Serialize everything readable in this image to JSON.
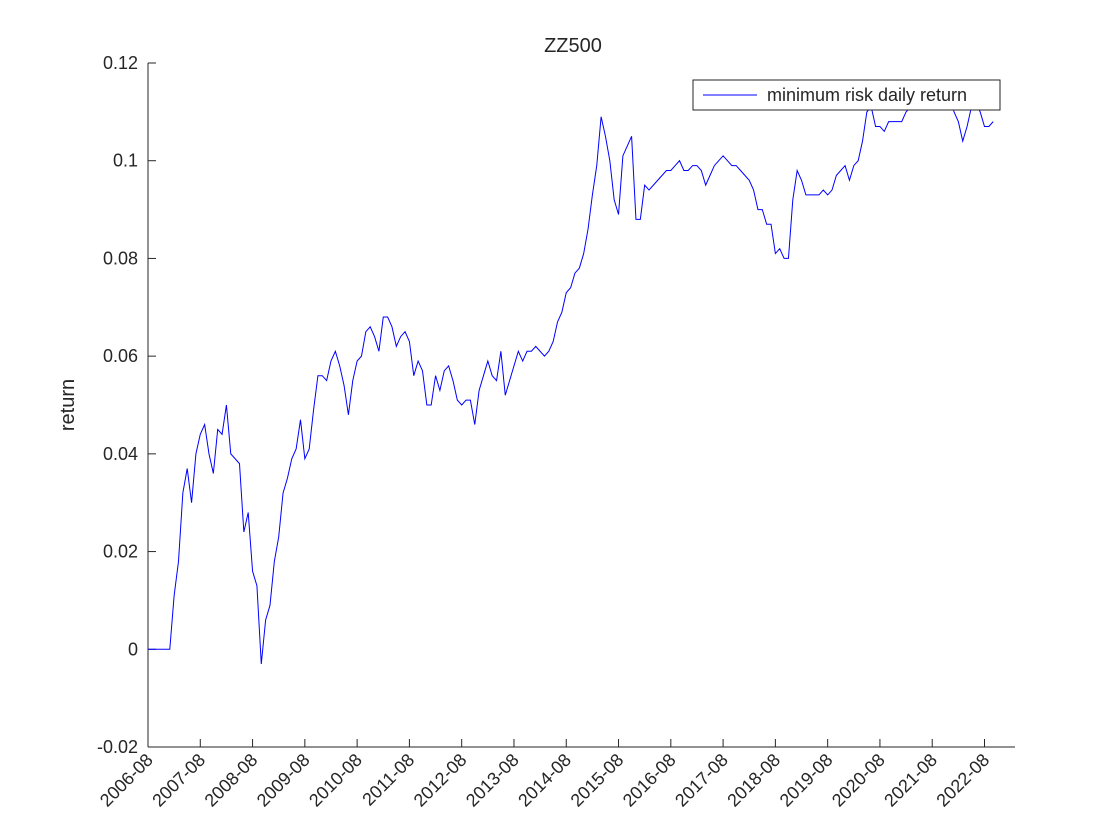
{
  "chart_data": {
    "type": "line",
    "title": "ZZ500",
    "ylabel": "return",
    "x": [
      "2006-08",
      "2006-09",
      "2006-10",
      "2006-11",
      "2006-12",
      "2007-01",
      "2007-02",
      "2007-03",
      "2007-04",
      "2007-05",
      "2007-06",
      "2007-07",
      "2007-08",
      "2007-09",
      "2007-10",
      "2007-11",
      "2007-12",
      "2008-01",
      "2008-02",
      "2008-03",
      "2008-04",
      "2008-05",
      "2008-06",
      "2008-07",
      "2008-08",
      "2008-09",
      "2008-10",
      "2008-11",
      "2008-12",
      "2009-01",
      "2009-02",
      "2009-03",
      "2009-04",
      "2009-05",
      "2009-06",
      "2009-07",
      "2009-08",
      "2009-09",
      "2009-10",
      "2009-11",
      "2009-12",
      "2010-01",
      "2010-02",
      "2010-03",
      "2010-04",
      "2010-05",
      "2010-06",
      "2010-07",
      "2010-08",
      "2010-09",
      "2010-10",
      "2010-11",
      "2010-12",
      "2011-01",
      "2011-02",
      "2011-03",
      "2011-04",
      "2011-05",
      "2011-06",
      "2011-07",
      "2011-08",
      "2011-09",
      "2011-10",
      "2011-11",
      "2011-12",
      "2012-01",
      "2012-02",
      "2012-03",
      "2012-04",
      "2012-05",
      "2012-06",
      "2012-07",
      "2012-08",
      "2012-09",
      "2012-10",
      "2012-11",
      "2012-12",
      "2013-01",
      "2013-02",
      "2013-03",
      "2013-04",
      "2013-05",
      "2013-06",
      "2013-07",
      "2013-08",
      "2013-09",
      "2013-10",
      "2013-11",
      "2013-12",
      "2014-01",
      "2014-02",
      "2014-03",
      "2014-04",
      "2014-05",
      "2014-06",
      "2014-07",
      "2014-08",
      "2014-09",
      "2014-10",
      "2014-11",
      "2014-12",
      "2015-01",
      "2015-02",
      "2015-03",
      "2015-04",
      "2015-05",
      "2015-06",
      "2015-07",
      "2015-08",
      "2015-09",
      "2015-10",
      "2015-11",
      "2015-12",
      "2016-01",
      "2016-02",
      "2016-03",
      "2016-04",
      "2016-05",
      "2016-06",
      "2016-07",
      "2016-08",
      "2016-09",
      "2016-10",
      "2016-11",
      "2016-12",
      "2017-01",
      "2017-02",
      "2017-03",
      "2017-04",
      "2017-05",
      "2017-06",
      "2017-07",
      "2017-08",
      "2017-09",
      "2017-10",
      "2017-11",
      "2017-12",
      "2018-01",
      "2018-02",
      "2018-03",
      "2018-04",
      "2018-05",
      "2018-06",
      "2018-07",
      "2018-08",
      "2018-09",
      "2018-10",
      "2018-11",
      "2018-12",
      "2019-01",
      "2019-02",
      "2019-03",
      "2019-04",
      "2019-05",
      "2019-06",
      "2019-07",
      "2019-08",
      "2019-09",
      "2019-10",
      "2019-11",
      "2019-12",
      "2020-01",
      "2020-02",
      "2020-03",
      "2020-04",
      "2020-05",
      "2020-06",
      "2020-07",
      "2020-08",
      "2020-09",
      "2020-10",
      "2020-11",
      "2020-12",
      "2021-01",
      "2021-02",
      "2021-03",
      "2021-04",
      "2021-05",
      "2021-06",
      "2021-07",
      "2021-08",
      "2021-09",
      "2021-10",
      "2021-11",
      "2021-12",
      "2022-01",
      "2022-02",
      "2022-03",
      "2022-04",
      "2022-05",
      "2022-06",
      "2022-07",
      "2022-08",
      "2022-09",
      "2022-10"
    ],
    "series": [
      {
        "name": "minimum risk daily return",
        "color": "#0000ff",
        "values": [
          0,
          0,
          0,
          0,
          0,
          0,
          0.011,
          0.018,
          0.032,
          0.037,
          0.03,
          0.04,
          0.044,
          0.046,
          0.04,
          0.036,
          0.045,
          0.044,
          0.05,
          0.04,
          0.039,
          0.038,
          0.024,
          0.028,
          0.016,
          0.013,
          -0.003,
          0.006,
          0.009,
          0.018,
          0.023,
          0.032,
          0.035,
          0.039,
          0.041,
          0.047,
          0.039,
          0.041,
          0.049,
          0.056,
          0.056,
          0.055,
          0.059,
          0.061,
          0.058,
          0.054,
          0.048,
          0.055,
          0.059,
          0.06,
          0.065,
          0.066,
          0.064,
          0.061,
          0.068,
          0.068,
          0.066,
          0.062,
          0.064,
          0.065,
          0.063,
          0.056,
          0.059,
          0.057,
          0.05,
          0.05,
          0.056,
          0.053,
          0.057,
          0.058,
          0.055,
          0.051,
          0.05,
          0.051,
          0.051,
          0.046,
          0.053,
          0.056,
          0.059,
          0.056,
          0.055,
          0.061,
          0.052,
          0.055,
          0.058,
          0.061,
          0.059,
          0.061,
          0.061,
          0.062,
          0.061,
          0.06,
          0.061,
          0.063,
          0.067,
          0.069,
          0.073,
          0.074,
          0.077,
          0.078,
          0.081,
          0.086,
          0.093,
          0.099,
          0.109,
          0.105,
          0.1,
          0.092,
          0.089,
          0.101,
          0.103,
          0.105,
          0.088,
          0.088,
          0.095,
          0.094,
          0.095,
          0.096,
          0.097,
          0.098,
          0.098,
          0.099,
          0.1,
          0.098,
          0.098,
          0.099,
          0.099,
          0.098,
          0.095,
          0.097,
          0.099,
          0.1,
          0.101,
          0.1,
          0.099,
          0.099,
          0.098,
          0.097,
          0.096,
          0.094,
          0.09,
          0.09,
          0.087,
          0.087,
          0.081,
          0.082,
          0.08,
          0.08,
          0.092,
          0.098,
          0.096,
          0.093,
          0.093,
          0.093,
          0.093,
          0.094,
          0.093,
          0.094,
          0.097,
          0.098,
          0.099,
          0.096,
          0.099,
          0.1,
          0.104,
          0.11,
          0.111,
          0.107,
          0.107,
          0.106,
          0.108,
          0.108,
          0.108,
          0.108,
          0.11,
          0.111,
          0.113,
          0.114,
          0.115,
          0.116,
          0.112,
          0.113,
          0.112,
          0.113,
          0.113,
          0.11,
          0.108,
          0.104,
          0.107,
          0.111,
          0.112,
          0.11,
          0.107,
          0.107,
          0.108
        ]
      }
    ],
    "xlim": [
      "2006-08",
      "2023-03"
    ],
    "xticks": [
      "2006-08",
      "2007-08",
      "2008-08",
      "2009-08",
      "2010-08",
      "2011-08",
      "2012-08",
      "2013-08",
      "2014-08",
      "2015-08",
      "2016-08",
      "2017-08",
      "2018-08",
      "2019-08",
      "2020-08",
      "2021-08",
      "2022-08"
    ],
    "ylim": [
      -0.02,
      0.12
    ],
    "yticks": [
      -0.02,
      0,
      0.02,
      0.04,
      0.06,
      0.08,
      0.1,
      0.12
    ],
    "legend": "northeast"
  }
}
